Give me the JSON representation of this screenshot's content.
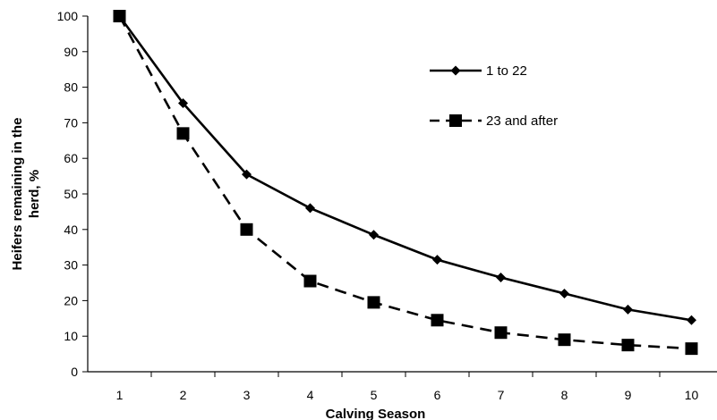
{
  "chart_data": {
    "type": "line",
    "title": "",
    "xlabel": "Calving Season",
    "ylabel": "Heifers remaining in the herd, %",
    "x": [
      1,
      2,
      3,
      4,
      5,
      6,
      7,
      8,
      9,
      10
    ],
    "xlim": [
      0.5,
      10.5
    ],
    "ylim": [
      0,
      100
    ],
    "yticks": [
      0,
      10,
      20,
      30,
      40,
      50,
      60,
      70,
      80,
      90,
      100
    ],
    "grid": false,
    "legend_position": "top-right",
    "series": [
      {
        "name": "1 to 22",
        "style": "solid",
        "marker": "diamond",
        "color": "#000000",
        "values": [
          100,
          75.5,
          55.5,
          46,
          38.5,
          31.5,
          26.5,
          22,
          17.5,
          14.5
        ]
      },
      {
        "name": "23 and after",
        "style": "dashed",
        "marker": "square",
        "color": "#000000",
        "values": [
          100,
          67,
          40,
          25.5,
          19.5,
          14.5,
          11,
          9,
          7.5,
          6.5
        ]
      }
    ]
  }
}
